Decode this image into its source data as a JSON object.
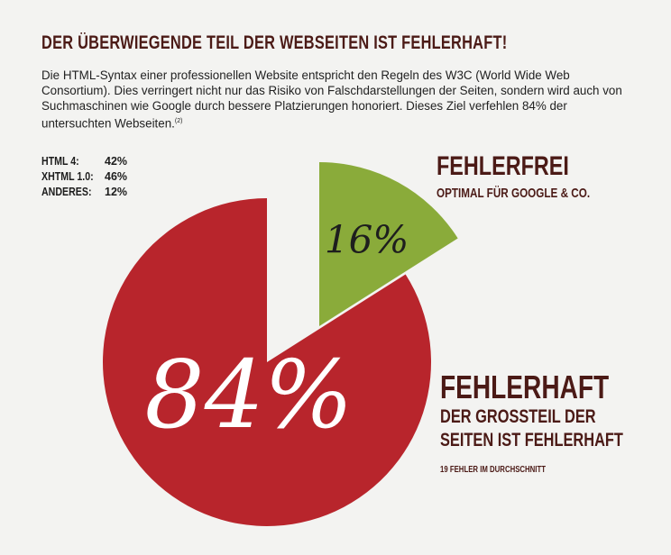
{
  "heading": "DER ÜBERWIEGENDE TEIL DER WEBSEITEN IST FEHLERHAFT!",
  "intro": {
    "text": "Die HTML-Syntax einer professionellen Website entspricht den Regeln des W3C (World Wide Web Consortium). Dies verringert nicht nur das Risiko von Falschdarstellungen der Seiten, sondern wird auch von Suchmaschinen wie Google durch bessere Platzierungen honoriert. Dieses Ziel verfehlen 84% der untersuchten Webseiten.",
    "footnote": "(2)"
  },
  "stats": [
    {
      "key": "HTML 4:",
      "value": "42%"
    },
    {
      "key": "XHTML 1.0:",
      "value": "46%"
    },
    {
      "key": "ANDERES:",
      "value": "12%"
    }
  ],
  "chart_data": {
    "type": "pie",
    "slices": [
      {
        "value": 84,
        "label": "84%",
        "color": "#b8252c"
      },
      {
        "value": 16,
        "label": "16%",
        "color": "#8aab3a"
      }
    ]
  },
  "labels": {
    "free_title": "FEHLERFREI",
    "free_subtitle": "OPTIMAL FÜR GOOGLE & CO.",
    "bad_title": "FEHLERHAFT",
    "bad_subtitle_1": "DER GROSSTEIL DER",
    "bad_subtitle_2": "SEITEN IST FEHLERHAFT",
    "bad_note": "19 FEHLER IM DURCHSCHNITT"
  }
}
